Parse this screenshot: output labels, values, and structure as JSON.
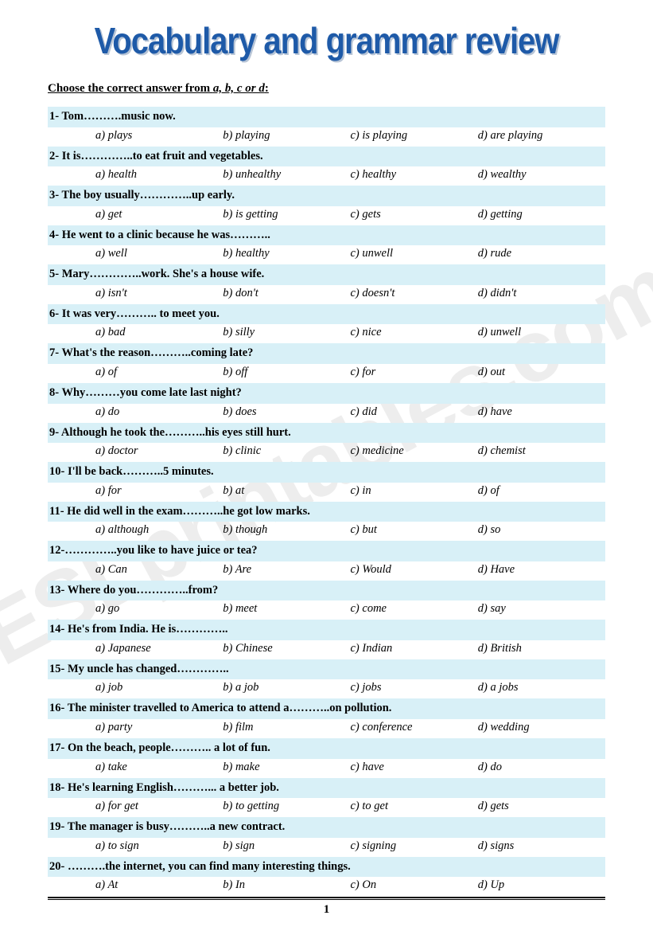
{
  "title": "Vocabulary and grammar review",
  "instruction_prefix": "Choose the correct answer from ",
  "instruction_options": "a, b, c or d",
  "instruction_suffix": ":",
  "watermark": "ESLprintables.com",
  "page_number": "1",
  "colors": {
    "title": "#1e5aa8",
    "prompt_bg": "#d8f0f7",
    "watermark": "rgba(0,0,0,0.07)"
  },
  "questions": [
    {
      "n": "1",
      "text": "Tom……….music now.",
      "a": "a) plays",
      "b": "b) playing",
      "c": "c) is playing",
      "d": "d) are playing"
    },
    {
      "n": "2",
      "text": "It is…………..to eat fruit and vegetables.",
      "a": "a) health",
      "b": "b) unhealthy",
      "c": "c) healthy",
      "d": "d) wealthy"
    },
    {
      "n": "3",
      "text": "The boy usually…………..up early.",
      "a": "a) get",
      "b": "b) is getting",
      "c": "c) gets",
      "d": "d) getting"
    },
    {
      "n": "4",
      "text": "He went to a clinic because he was………..",
      "a": "a) well",
      "b": "b) healthy",
      "c": "c) unwell",
      "d": "d) rude"
    },
    {
      "n": "5",
      "text": "Mary…………..work. She's a house wife.",
      "a": "a) isn't",
      "b": "b) don't",
      "c": "c) doesn't",
      "d": "d) didn't"
    },
    {
      "n": "6",
      "text": "It was very………..       to meet you.",
      "a": "a) bad",
      "b": "b) silly",
      "c": "c) nice",
      "d": "d) unwell"
    },
    {
      "n": "7",
      "text": "What's the reason………..coming late?",
      "a": "a) of",
      "b": "b) off",
      "c": "c) for",
      "d": "d) out"
    },
    {
      "n": "8",
      "text": "Why………you come late last night?",
      "a": "a) do",
      "b": "b) does",
      "c": "c) did",
      "d": "d) have"
    },
    {
      "n": "9",
      "text": "Although he took the………..his eyes still hurt.",
      "a": "a) doctor",
      "b": "b) clinic",
      "c": "c) medicine",
      "d": "d) chemist"
    },
    {
      "n": "10",
      "text": "I'll be back………..5 minutes.",
      "a": "a) for",
      "b": " b) at",
      "c": "c) in",
      "d": "d) of"
    },
    {
      "n": "11",
      "text": "He did well in the exam………..he got low marks.",
      "a": "a) although",
      "b": "b) though",
      "c": "c) but",
      "d": "d) so"
    },
    {
      "n": "12",
      "text": "…………..you like to have juice or tea?",
      "a": "a) Can",
      "b": "b) Are",
      "c": "c) Would",
      "d": "d) Have"
    },
    {
      "n": "13",
      "text": "Where do you…………..from?",
      "a": "a) go",
      "b": "b) meet",
      "c": "c) come",
      "d": "d) say"
    },
    {
      "n": "14",
      "text": "He's from India. He is…………..",
      "a": "a) Japanese",
      "b": "b) Chinese",
      "c": "c) Indian",
      "d": "d) British"
    },
    {
      "n": "15",
      "text": "My uncle has changed…………..",
      "a": "a) job",
      "b": "b) a job",
      "c": "c) jobs",
      "d": "d) a jobs"
    },
    {
      "n": "16",
      "text": "The minister travelled to America to attend a………..on pollution.",
      "a": "a) party",
      "b": "b) film",
      "c": "c) conference",
      "d": "d) wedding"
    },
    {
      "n": "17",
      "text": "On the beach, people………..    a lot of fun.",
      "a": "a) take",
      "b": "b) make",
      "c": "c) have",
      "d": "d) do"
    },
    {
      "n": "18",
      "text": "He's learning English………... a better job.",
      "a": "a) for get",
      "b": "b) to getting",
      "c": "c) to get",
      "d": "d) gets"
    },
    {
      "n": "19",
      "text": "The manager is busy………..a new contract.",
      "a": "a) to sign",
      "b": "b) sign",
      "c": "c) signing",
      "d": "d) signs"
    },
    {
      "n": "20",
      "text": "……….the internet, you can find many interesting things.",
      "a": "a) At",
      "b": "b) In",
      "c": "c) On",
      "d": "d) Up"
    }
  ]
}
